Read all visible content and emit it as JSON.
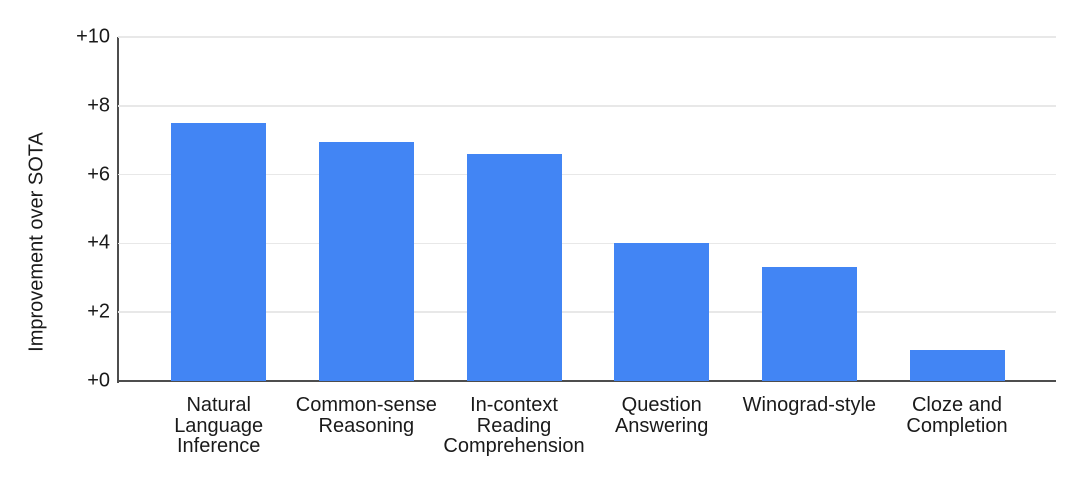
{
  "chart_data": {
    "type": "bar",
    "title": "",
    "xlabel": "",
    "ylabel": "Improvement over SOTA",
    "ylim": [
      0,
      10
    ],
    "yticks": [
      0,
      2,
      4,
      6,
      8,
      10
    ],
    "ytick_labels": [
      "+0",
      "+2",
      "+4",
      "+6",
      "+8",
      "+10"
    ],
    "grid": true,
    "legend_position": "none",
    "categories": [
      "Natural Language Inference",
      "Common-sense Reasoning",
      "In-context Reading Comprehension",
      "Question Answering",
      "Winograd-style",
      "Cloze and Completion"
    ],
    "category_label_lines": [
      [
        "Natural",
        "Language",
        "Inference"
      ],
      [
        "Common-sense",
        "Reasoning"
      ],
      [
        "In-context",
        "Reading",
        "Comprehension"
      ],
      [
        "Question",
        "Answering"
      ],
      [
        "Winograd-style"
      ],
      [
        "Cloze and",
        "Completion"
      ]
    ],
    "values": [
      7.5,
      6.95,
      6.6,
      4.0,
      3.3,
      0.9
    ]
  },
  "colors": {
    "bar": "#4285F4",
    "axis_line": "#4d4d4d",
    "gridline": "#e8e8e8",
    "text": "#1a1a1a",
    "background": "#ffffff"
  }
}
